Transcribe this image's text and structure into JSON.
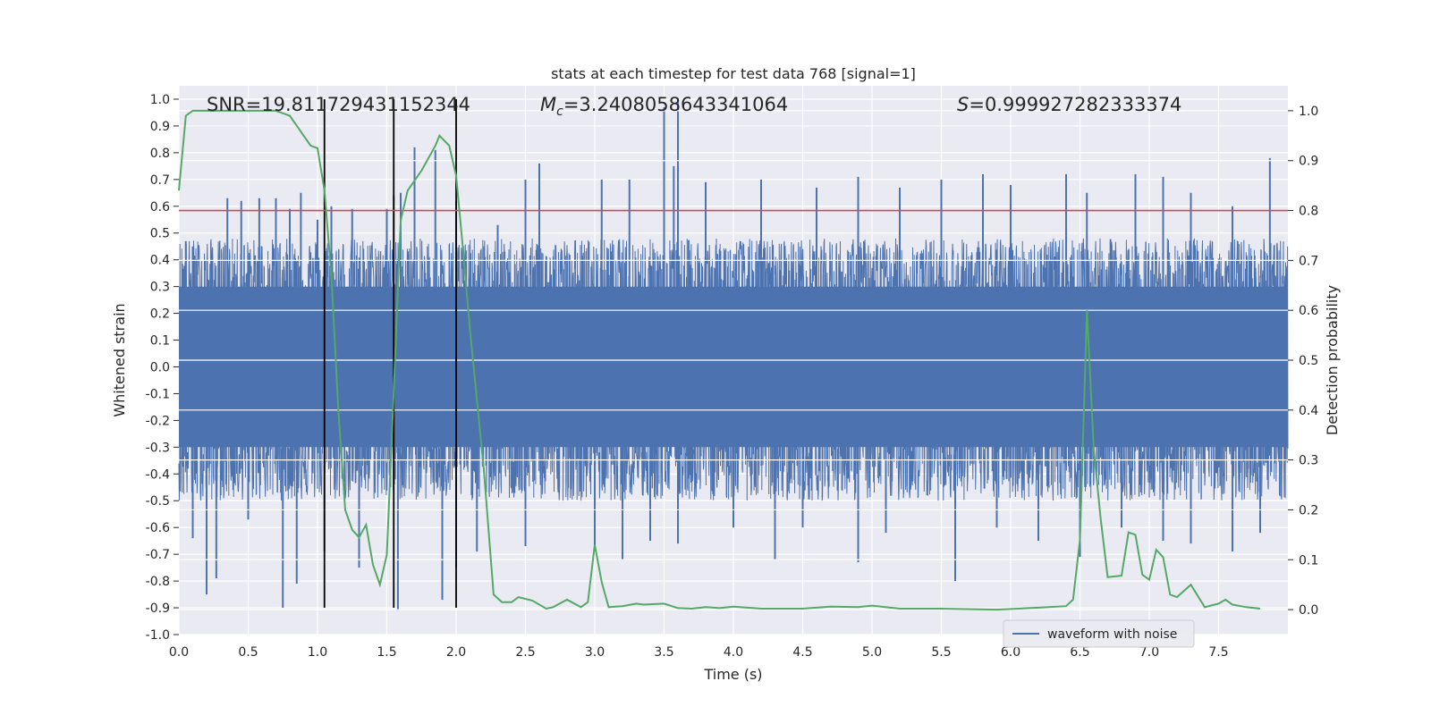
{
  "chart_data": {
    "type": "line",
    "title": "stats at each timestep for test data 768 [signal=1]",
    "xlabel": "Time (s)",
    "ylabel_left": "Whitened strain",
    "ylabel_right": "Detection probability",
    "xlim": [
      0.0,
      8.0
    ],
    "ylim_left": [
      -1.0,
      1.05
    ],
    "ylim_right": [
      -0.05,
      1.05
    ],
    "x_ticks": [
      "0.0",
      "0.5",
      "1.0",
      "1.5",
      "2.0",
      "2.5",
      "3.0",
      "3.5",
      "4.0",
      "4.5",
      "5.0",
      "5.5",
      "6.0",
      "6.5",
      "7.0",
      "7.5"
    ],
    "y_ticks_left": [
      "-1.0",
      "-0.9",
      "-0.8",
      "-0.7",
      "-0.6",
      "-0.5",
      "-0.4",
      "-0.3",
      "-0.2",
      "-0.1",
      "0.0",
      "0.1",
      "0.2",
      "0.3",
      "0.4",
      "0.5",
      "0.6",
      "0.7",
      "0.8",
      "0.9",
      "1.0"
    ],
    "y_ticks_right": [
      "0.0",
      "0.1",
      "0.2",
      "0.3",
      "0.4",
      "0.5",
      "0.6",
      "0.7",
      "0.8",
      "0.9",
      "1.0"
    ],
    "grid": true,
    "legend": {
      "position": "lower-right",
      "entries": [
        "waveform with noise"
      ]
    },
    "annotations": {
      "snr": "SNR=19.811729431152344",
      "mc_symbol": "M",
      "mc_sub": "c",
      "mc_value": "=3.2408058643341064",
      "s_symbol": "S",
      "s_value": "=0.999927282333374"
    },
    "waveform": {
      "name": "waveform with noise",
      "color": "#4c72b0",
      "t_start": 0.0,
      "t_end": 8.0,
      "sample_rate": 2048,
      "dense_band": [
        -0.3,
        0.3
      ],
      "envelope": [
        0.48,
        -0.5
      ],
      "spikes_up": [
        [
          0.05,
          0.47
        ],
        [
          0.1,
          0.45
        ],
        [
          0.35,
          0.63
        ],
        [
          0.45,
          0.62
        ],
        [
          0.58,
          0.63
        ],
        [
          0.7,
          0.63
        ],
        [
          0.8,
          0.59
        ],
        [
          0.88,
          0.65
        ],
        [
          1.0,
          0.55
        ],
        [
          1.1,
          0.6
        ],
        [
          1.25,
          0.59
        ],
        [
          1.5,
          0.59
        ],
        [
          1.55,
          0.64
        ],
        [
          1.6,
          0.65
        ],
        [
          1.7,
          0.82
        ],
        [
          1.85,
          0.81
        ],
        [
          2.0,
          0.62
        ],
        [
          2.3,
          0.53
        ],
        [
          2.5,
          0.7
        ],
        [
          2.6,
          0.76
        ],
        [
          3.05,
          0.7
        ],
        [
          3.25,
          0.7
        ],
        [
          3.5,
          0.97
        ],
        [
          3.57,
          0.75
        ],
        [
          3.6,
          1.0
        ],
        [
          3.8,
          0.69
        ],
        [
          4.2,
          0.7
        ],
        [
          4.6,
          0.67
        ],
        [
          4.9,
          0.71
        ],
        [
          5.2,
          0.67
        ],
        [
          5.5,
          0.7
        ],
        [
          5.8,
          0.72
        ],
        [
          6.0,
          0.68
        ],
        [
          6.4,
          0.72
        ],
        [
          6.55,
          0.65
        ],
        [
          6.9,
          0.72
        ],
        [
          7.1,
          0.71
        ],
        [
          7.3,
          0.65
        ],
        [
          7.6,
          0.6
        ],
        [
          7.87,
          0.78
        ]
      ],
      "spikes_down": [
        [
          0.1,
          -0.64
        ],
        [
          0.2,
          -0.85
        ],
        [
          0.27,
          -0.79
        ],
        [
          0.5,
          -0.57
        ],
        [
          0.75,
          -0.9
        ],
        [
          0.85,
          -0.81
        ],
        [
          1.05,
          -0.69
        ],
        [
          1.3,
          -0.75
        ],
        [
          1.58,
          -0.91
        ],
        [
          1.9,
          -0.87
        ],
        [
          2.0,
          -0.75
        ],
        [
          2.15,
          -0.69
        ],
        [
          2.5,
          -0.67
        ],
        [
          3.0,
          -0.68
        ],
        [
          3.2,
          -0.72
        ],
        [
          3.4,
          -0.65
        ],
        [
          3.6,
          -0.66
        ],
        [
          4.0,
          -0.6
        ],
        [
          4.3,
          -0.72
        ],
        [
          4.5,
          -0.6
        ],
        [
          4.9,
          -0.73
        ],
        [
          5.1,
          -0.62
        ],
        [
          5.6,
          -0.8
        ],
        [
          5.9,
          -0.6
        ],
        [
          6.2,
          -0.65
        ],
        [
          6.5,
          -0.71
        ],
        [
          6.8,
          -0.6
        ],
        [
          7.1,
          -0.65
        ],
        [
          7.3,
          -0.66
        ],
        [
          7.6,
          -0.69
        ],
        [
          7.8,
          -0.62
        ]
      ]
    },
    "probability": {
      "color": "#55a868",
      "points": [
        [
          0.0,
          0.84
        ],
        [
          0.05,
          0.99
        ],
        [
          0.1,
          1.0
        ],
        [
          0.2,
          1.0
        ],
        [
          0.3,
          1.0
        ],
        [
          0.4,
          1.0
        ],
        [
          0.5,
          1.0
        ],
        [
          0.6,
          1.0
        ],
        [
          0.7,
          1.0
        ],
        [
          0.8,
          0.99
        ],
        [
          0.85,
          0.97
        ],
        [
          0.95,
          0.93
        ],
        [
          1.0,
          0.925
        ],
        [
          1.05,
          0.84
        ],
        [
          1.1,
          0.67
        ],
        [
          1.15,
          0.4
        ],
        [
          1.2,
          0.2
        ],
        [
          1.25,
          0.16
        ],
        [
          1.3,
          0.145
        ],
        [
          1.35,
          0.17
        ],
        [
          1.4,
          0.09
        ],
        [
          1.45,
          0.05
        ],
        [
          1.5,
          0.11
        ],
        [
          1.55,
          0.44
        ],
        [
          1.6,
          0.78
        ],
        [
          1.65,
          0.84
        ],
        [
          1.75,
          0.88
        ],
        [
          1.85,
          0.93
        ],
        [
          1.88,
          0.95
        ],
        [
          1.95,
          0.93
        ],
        [
          2.0,
          0.87
        ],
        [
          2.05,
          0.72
        ],
        [
          2.1,
          0.56
        ],
        [
          2.2,
          0.28
        ],
        [
          2.27,
          0.03
        ],
        [
          2.33,
          0.015
        ],
        [
          2.4,
          0.015
        ],
        [
          2.45,
          0.025
        ],
        [
          2.55,
          0.018
        ],
        [
          2.65,
          0.002
        ],
        [
          2.7,
          0.005
        ],
        [
          2.8,
          0.02
        ],
        [
          2.9,
          0.005
        ],
        [
          2.95,
          0.015
        ],
        [
          3.0,
          0.13
        ],
        [
          3.05,
          0.055
        ],
        [
          3.1,
          0.005
        ],
        [
          3.2,
          0.007
        ],
        [
          3.3,
          0.012
        ],
        [
          3.35,
          0.01
        ],
        [
          3.5,
          0.012
        ],
        [
          3.6,
          0.003
        ],
        [
          3.7,
          0.002
        ],
        [
          3.8,
          0.005
        ],
        [
          3.9,
          0.003
        ],
        [
          4.0,
          0.006
        ],
        [
          4.2,
          0.002
        ],
        [
          4.5,
          0.002
        ],
        [
          4.7,
          0.006
        ],
        [
          4.9,
          0.005
        ],
        [
          5.0,
          0.008
        ],
        [
          5.2,
          0.002
        ],
        [
          5.5,
          0.002
        ],
        [
          5.9,
          0.0
        ],
        [
          6.2,
          0.004
        ],
        [
          6.4,
          0.007
        ],
        [
          6.45,
          0.02
        ],
        [
          6.5,
          0.14
        ],
        [
          6.55,
          0.6
        ],
        [
          6.6,
          0.32
        ],
        [
          6.65,
          0.18
        ],
        [
          6.7,
          0.065
        ],
        [
          6.8,
          0.068
        ],
        [
          6.85,
          0.155
        ],
        [
          6.9,
          0.15
        ],
        [
          6.95,
          0.07
        ],
        [
          7.0,
          0.06
        ],
        [
          7.05,
          0.12
        ],
        [
          7.1,
          0.105
        ],
        [
          7.15,
          0.03
        ],
        [
          7.2,
          0.025
        ],
        [
          7.3,
          0.05
        ],
        [
          7.4,
          0.005
        ],
        [
          7.5,
          0.012
        ],
        [
          7.55,
          0.02
        ],
        [
          7.6,
          0.01
        ],
        [
          7.7,
          0.005
        ],
        [
          7.8,
          0.002
        ]
      ]
    },
    "threshold": {
      "color": "#c44e52",
      "y_right": 0.8
    },
    "vertical_markers": {
      "color": "#000000",
      "x": [
        1.05,
        1.55,
        2.0
      ],
      "y_top_left": 1.0,
      "y_bottom_left": -0.9
    }
  }
}
